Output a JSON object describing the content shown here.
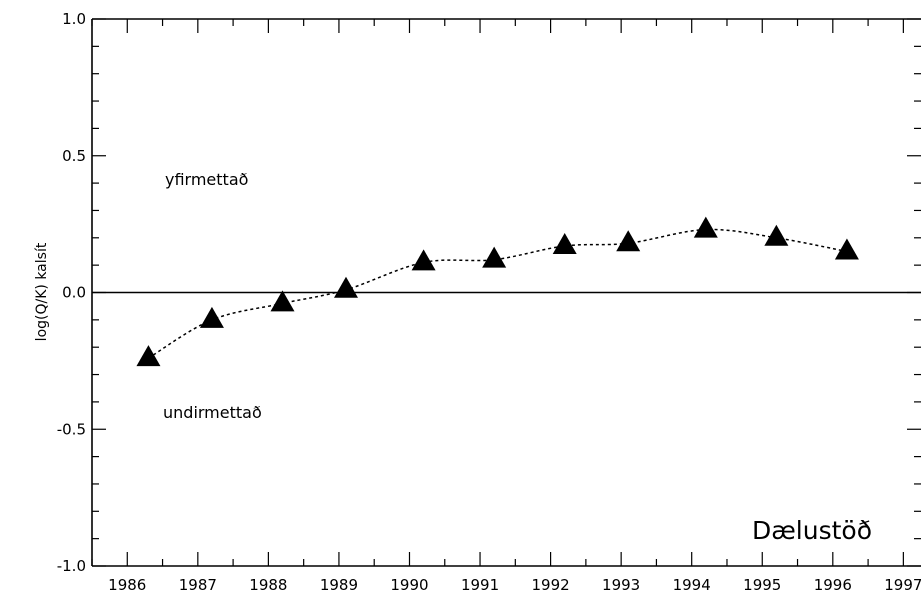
{
  "chart_data": {
    "type": "line",
    "title": "",
    "xlabel": "",
    "ylabel": "log(Q/K)  kalsít",
    "xlim": [
      1985.5,
      1997.25
    ],
    "ylim": [
      -1.0,
      1.0
    ],
    "x_ticks": [
      1986,
      1987,
      1988,
      1989,
      1990,
      1991,
      1992,
      1993,
      1994,
      1995,
      1996,
      1997
    ],
    "x_tick_labels": [
      "1986",
      "1987",
      "1988",
      "1989",
      "1990",
      "1991",
      "1992",
      "1993",
      "1994",
      "1995",
      "1996",
      "1997"
    ],
    "y_ticks": [
      -1.0,
      -0.5,
      0.0,
      0.5,
      1.0
    ],
    "y_tick_labels": [
      "-1.0",
      "-0.5",
      "0.0",
      "0.5",
      "1.0"
    ],
    "reference_line_y": 0.0,
    "grid": false,
    "legend": "none",
    "series": [
      {
        "marker": "triangle",
        "line_style": "dotted",
        "x": [
          1986.3,
          1987.2,
          1988.2,
          1989.1,
          1990.2,
          1991.2,
          1992.2,
          1993.1,
          1994.2,
          1995.2,
          1996.2
        ],
        "y": [
          -0.24,
          -0.1,
          -0.04,
          0.01,
          0.11,
          0.12,
          0.17,
          0.18,
          0.23,
          0.2,
          0.15
        ]
      }
    ],
    "annotations": {
      "upper": "yfirmettað",
      "lower": "undirmettað",
      "station": "Dælustöð"
    }
  }
}
